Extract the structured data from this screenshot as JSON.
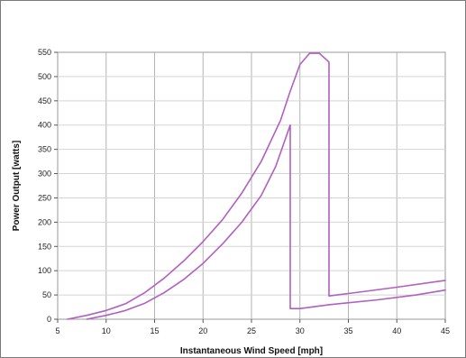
{
  "chart_data": {
    "type": "line",
    "title": "",
    "xlabel": "Instantaneous Wind Speed [mph]",
    "ylabel": "Power Output [watts]",
    "xlim": [
      5,
      45
    ],
    "ylim": [
      0,
      550
    ],
    "xticks": [
      5,
      10,
      15,
      20,
      25,
      30,
      35,
      40,
      45
    ],
    "yticks": [
      0,
      50,
      100,
      150,
      200,
      250,
      300,
      350,
      400,
      450,
      500,
      550
    ],
    "grid": true,
    "legend": "none",
    "line_color": "#b060c0",
    "series": [
      {
        "name": "",
        "points": [
          [
            6,
            0
          ],
          [
            8,
            8
          ],
          [
            10,
            18
          ],
          [
            12,
            32
          ],
          [
            14,
            55
          ],
          [
            16,
            85
          ],
          [
            18,
            120
          ],
          [
            20,
            160
          ],
          [
            22,
            205
          ],
          [
            24,
            260
          ],
          [
            26,
            325
          ],
          [
            28,
            410
          ],
          [
            29,
            470
          ],
          [
            30,
            525
          ],
          [
            31,
            548
          ],
          [
            32,
            548
          ],
          [
            33,
            530
          ],
          [
            33,
            48
          ],
          [
            35,
            53
          ],
          [
            40,
            66
          ],
          [
            45,
            80
          ]
        ]
      },
      {
        "name": "",
        "points": [
          [
            8,
            0
          ],
          [
            10,
            8
          ],
          [
            12,
            18
          ],
          [
            14,
            33
          ],
          [
            16,
            55
          ],
          [
            18,
            82
          ],
          [
            20,
            115
          ],
          [
            22,
            155
          ],
          [
            24,
            200
          ],
          [
            26,
            255
          ],
          [
            27.5,
            315
          ],
          [
            29,
            400
          ],
          [
            29,
            22
          ],
          [
            30,
            22
          ],
          [
            33,
            30
          ],
          [
            38,
            40
          ],
          [
            42,
            50
          ],
          [
            45,
            60
          ]
        ]
      }
    ]
  }
}
